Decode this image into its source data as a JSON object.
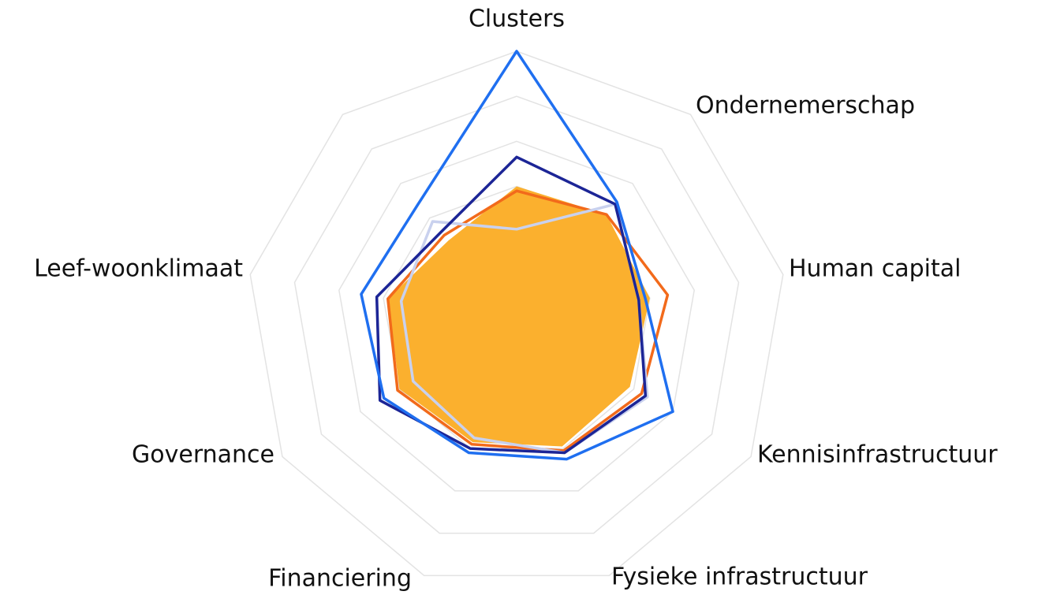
{
  "chart_data": {
    "type": "radar",
    "categories": [
      "Clusters",
      "Ondernemerschap",
      "Human capital",
      "Kennisinfrastructuur",
      "Fysieke infrastructuur",
      "Financiering",
      "Governance",
      "Leef-woonklimaat",
      null
    ],
    "rlim": [
      0,
      6
    ],
    "rticks": [
      1,
      2,
      3,
      4,
      5,
      6
    ],
    "grid": true,
    "series": [
      {
        "color": "#fbb02e",
        "fill": true,
        "values": [
          3.0,
          3.1,
          3.0,
          2.9,
          2.95,
          2.85,
          3.0,
          2.9,
          2.35
        ]
      },
      {
        "color": "#f26a1b",
        "fill": false,
        "values": [
          2.9,
          3.1,
          3.4,
          3.2,
          3.05,
          2.9,
          3.05,
          2.9,
          2.5
        ]
      },
      {
        "color": "#c9d1ee",
        "fill": false,
        "values": [
          2.05,
          3.4,
          2.75,
          3.35,
          3.1,
          2.75,
          2.65,
          2.6,
          2.9
        ]
      },
      {
        "color": "#1c2596",
        "fill": false,
        "values": [
          3.65,
          3.4,
          2.75,
          3.3,
          3.1,
          3.0,
          3.5,
          3.15,
          2.6
        ]
      },
      {
        "color": "#1f6ff0",
        "fill": false,
        "values": [
          6.0,
          3.46,
          2.9,
          4.0,
          3.25,
          3.1,
          3.4,
          3.5,
          3.4
        ]
      }
    ]
  }
}
